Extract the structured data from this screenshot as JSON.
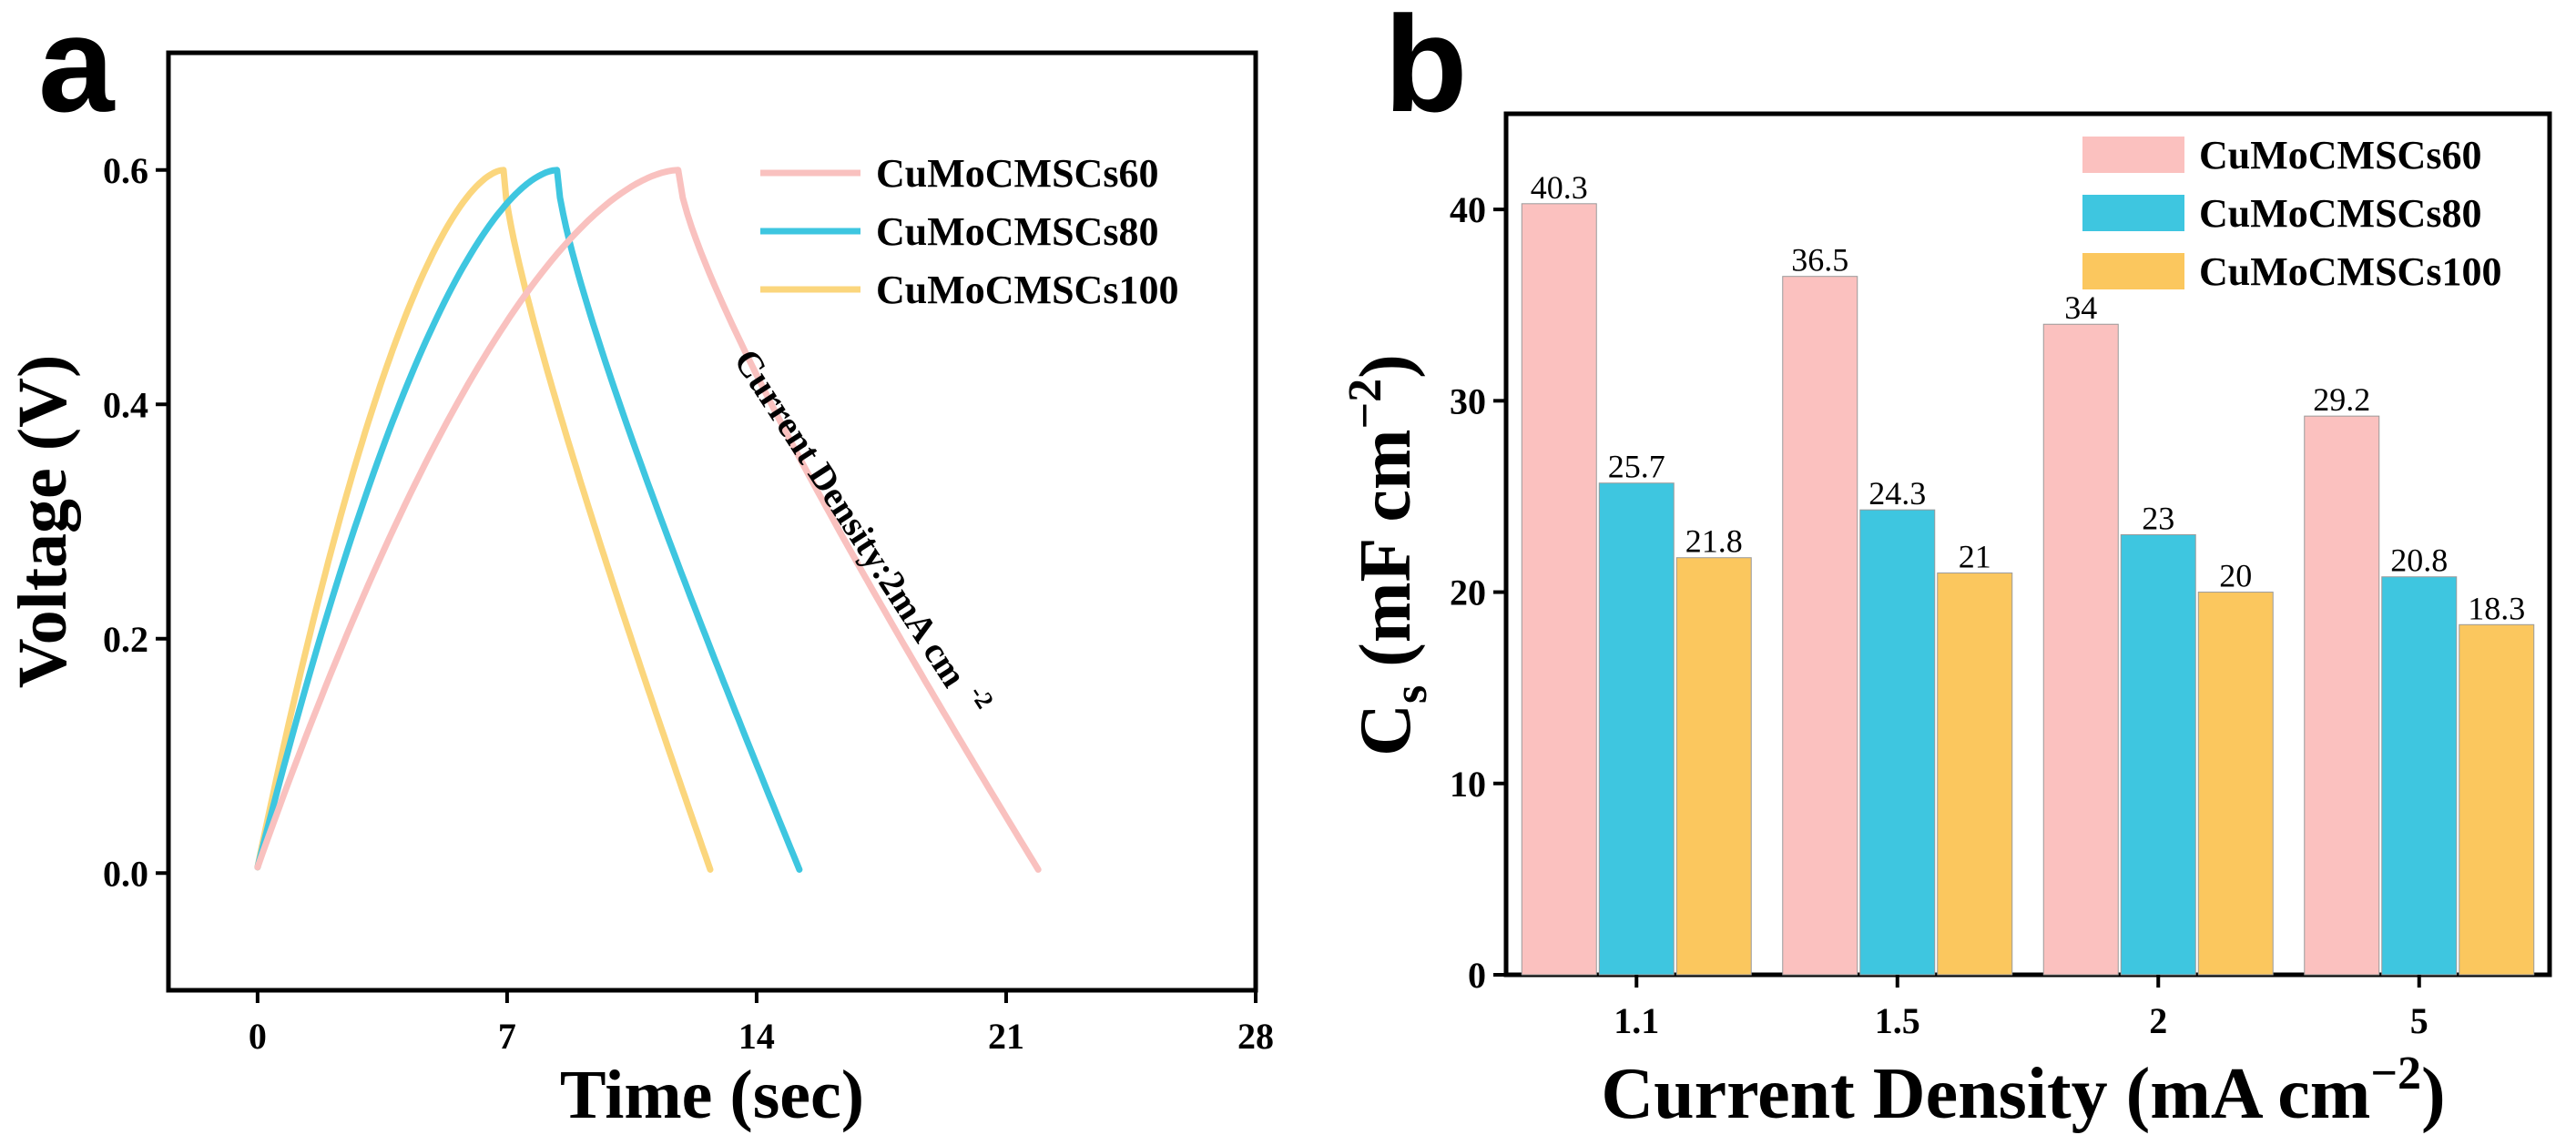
{
  "chart_data": [
    {
      "panel": "a",
      "type": "line",
      "xlabel": "Time (sec)",
      "ylabel": "Voltage (V)",
      "xlim": [
        -2.5,
        28
      ],
      "ylim": [
        -0.1,
        0.7
      ],
      "xticks": [
        0,
        7,
        14,
        21,
        28
      ],
      "xtick_labels": [
        "0",
        "7",
        "14",
        "21",
        "28"
      ],
      "yticks": [
        0.0,
        0.2,
        0.4,
        0.6
      ],
      "ytick_labels": [
        "0.0",
        "0.2",
        "0.4",
        "0.6"
      ],
      "annotation": {
        "text": "Current Density:2mA cm",
        "superscript": "-2"
      },
      "legend_position": "top-right",
      "series": [
        {
          "name": "CuMoCMSCs60",
          "color": "#f9c1bf",
          "t_peak": 11.8,
          "t_end": 21.9,
          "vmax": 0.6
        },
        {
          "name": "CuMoCMSCs80",
          "color": "#3ec6e0",
          "t_peak": 8.4,
          "t_end": 15.2,
          "vmax": 0.6
        },
        {
          "name": "CuMoCMSCs100",
          "color": "#fbd67d",
          "t_peak": 6.9,
          "t_end": 12.7,
          "vmax": 0.6
        }
      ]
    },
    {
      "panel": "b",
      "type": "bar",
      "xlabel": "Current Density (mA cm",
      "xlabel_sup": "−2",
      "xlabel_end": ")",
      "ylabel": "C",
      "ylabel_sub": "s",
      "ylabel_unit": " (mF cm",
      "ylabel_sup": "−2",
      "ylabel_end": ")",
      "ylim": [
        0,
        45
      ],
      "yticks": [
        0,
        10,
        20,
        30,
        40
      ],
      "ytick_labels": [
        "0",
        "10",
        "20",
        "30",
        "40"
      ],
      "categories": [
        "1.1",
        "1.5",
        "2",
        "5"
      ],
      "legend_position": "top-right",
      "series": [
        {
          "name": "CuMoCMSCs60",
          "color": "#fbc1bf",
          "values": [
            40.3,
            36.5,
            34,
            29.2
          ],
          "labels": [
            "40.3",
            "36.5",
            "34",
            "29.2"
          ]
        },
        {
          "name": "CuMoCMSCs80",
          "color": "#3ec6e0",
          "values": [
            25.7,
            24.3,
            23,
            20.8
          ],
          "labels": [
            "25.7",
            "24.3",
            "23",
            "20.8"
          ]
        },
        {
          "name": "CuMoCMSCs100",
          "color": "#fbc75e",
          "values": [
            21.8,
            21,
            20,
            18.3
          ],
          "labels": [
            "21.8",
            "21",
            "20",
            "18.3"
          ]
        }
      ]
    }
  ]
}
